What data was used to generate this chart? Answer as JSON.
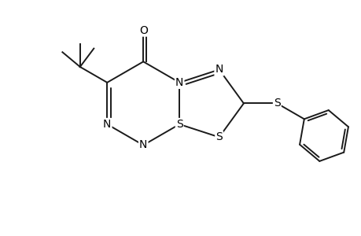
{
  "bg_color": "#ffffff",
  "bond_color": "#1a1a1a",
  "atom_color": "#000000",
  "lw": 1.4,
  "figsize": [
    4.6,
    3.0
  ],
  "dpi": 100,
  "xlim": [
    -3.5,
    5.0
  ],
  "ylim": [
    -2.8,
    2.8
  ],
  "font_size": 10
}
